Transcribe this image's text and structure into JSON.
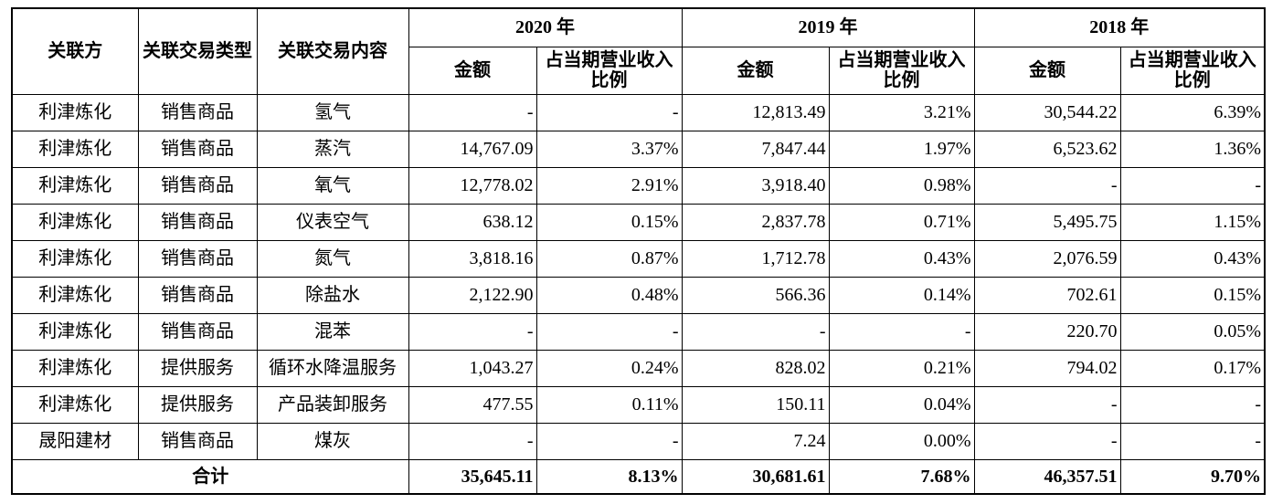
{
  "table": {
    "headers": {
      "party": "关联方",
      "type": "关联交易类型",
      "content": "关联交易内容",
      "years": [
        {
          "year": "2020 年",
          "amount": "金额",
          "ratio": "占当期营业收入比例"
        },
        {
          "year": "2019 年",
          "amount": "金额",
          "ratio": "占当期营业收入比例"
        },
        {
          "year": "2018 年",
          "amount": "金额",
          "ratio": "占当期营业收入比例"
        }
      ]
    },
    "rows": [
      [
        "利津炼化",
        "销售商品",
        "氢气",
        "-",
        "-",
        "12,813.49",
        "3.21%",
        "30,544.22",
        "6.39%"
      ],
      [
        "利津炼化",
        "销售商品",
        "蒸汽",
        "14,767.09",
        "3.37%",
        "7,847.44",
        "1.97%",
        "6,523.62",
        "1.36%"
      ],
      [
        "利津炼化",
        "销售商品",
        "氧气",
        "12,778.02",
        "2.91%",
        "3,918.40",
        "0.98%",
        "-",
        "-"
      ],
      [
        "利津炼化",
        "销售商品",
        "仪表空气",
        "638.12",
        "0.15%",
        "2,837.78",
        "0.71%",
        "5,495.75",
        "1.15%"
      ],
      [
        "利津炼化",
        "销售商品",
        "氮气",
        "3,818.16",
        "0.87%",
        "1,712.78",
        "0.43%",
        "2,076.59",
        "0.43%"
      ],
      [
        "利津炼化",
        "销售商品",
        "除盐水",
        "2,122.90",
        "0.48%",
        "566.36",
        "0.14%",
        "702.61",
        "0.15%"
      ],
      [
        "利津炼化",
        "销售商品",
        "混苯",
        "-",
        "-",
        "-",
        "-",
        "220.70",
        "0.05%"
      ],
      [
        "利津炼化",
        "提供服务",
        "循环水降温服务",
        "1,043.27",
        "0.24%",
        "828.02",
        "0.21%",
        "794.02",
        "0.17%"
      ],
      [
        "利津炼化",
        "提供服务",
        "产品装卸服务",
        "477.55",
        "0.11%",
        "150.11",
        "0.04%",
        "-",
        "-"
      ],
      [
        "晟阳建材",
        "销售商品",
        "煤灰",
        "-",
        "-",
        "7.24",
        "0.00%",
        "-",
        "-"
      ]
    ],
    "total": {
      "label": "合计",
      "values": [
        "35,645.11",
        "8.13%",
        "30,681.61",
        "7.68%",
        "46,357.51",
        "9.70%"
      ]
    }
  }
}
